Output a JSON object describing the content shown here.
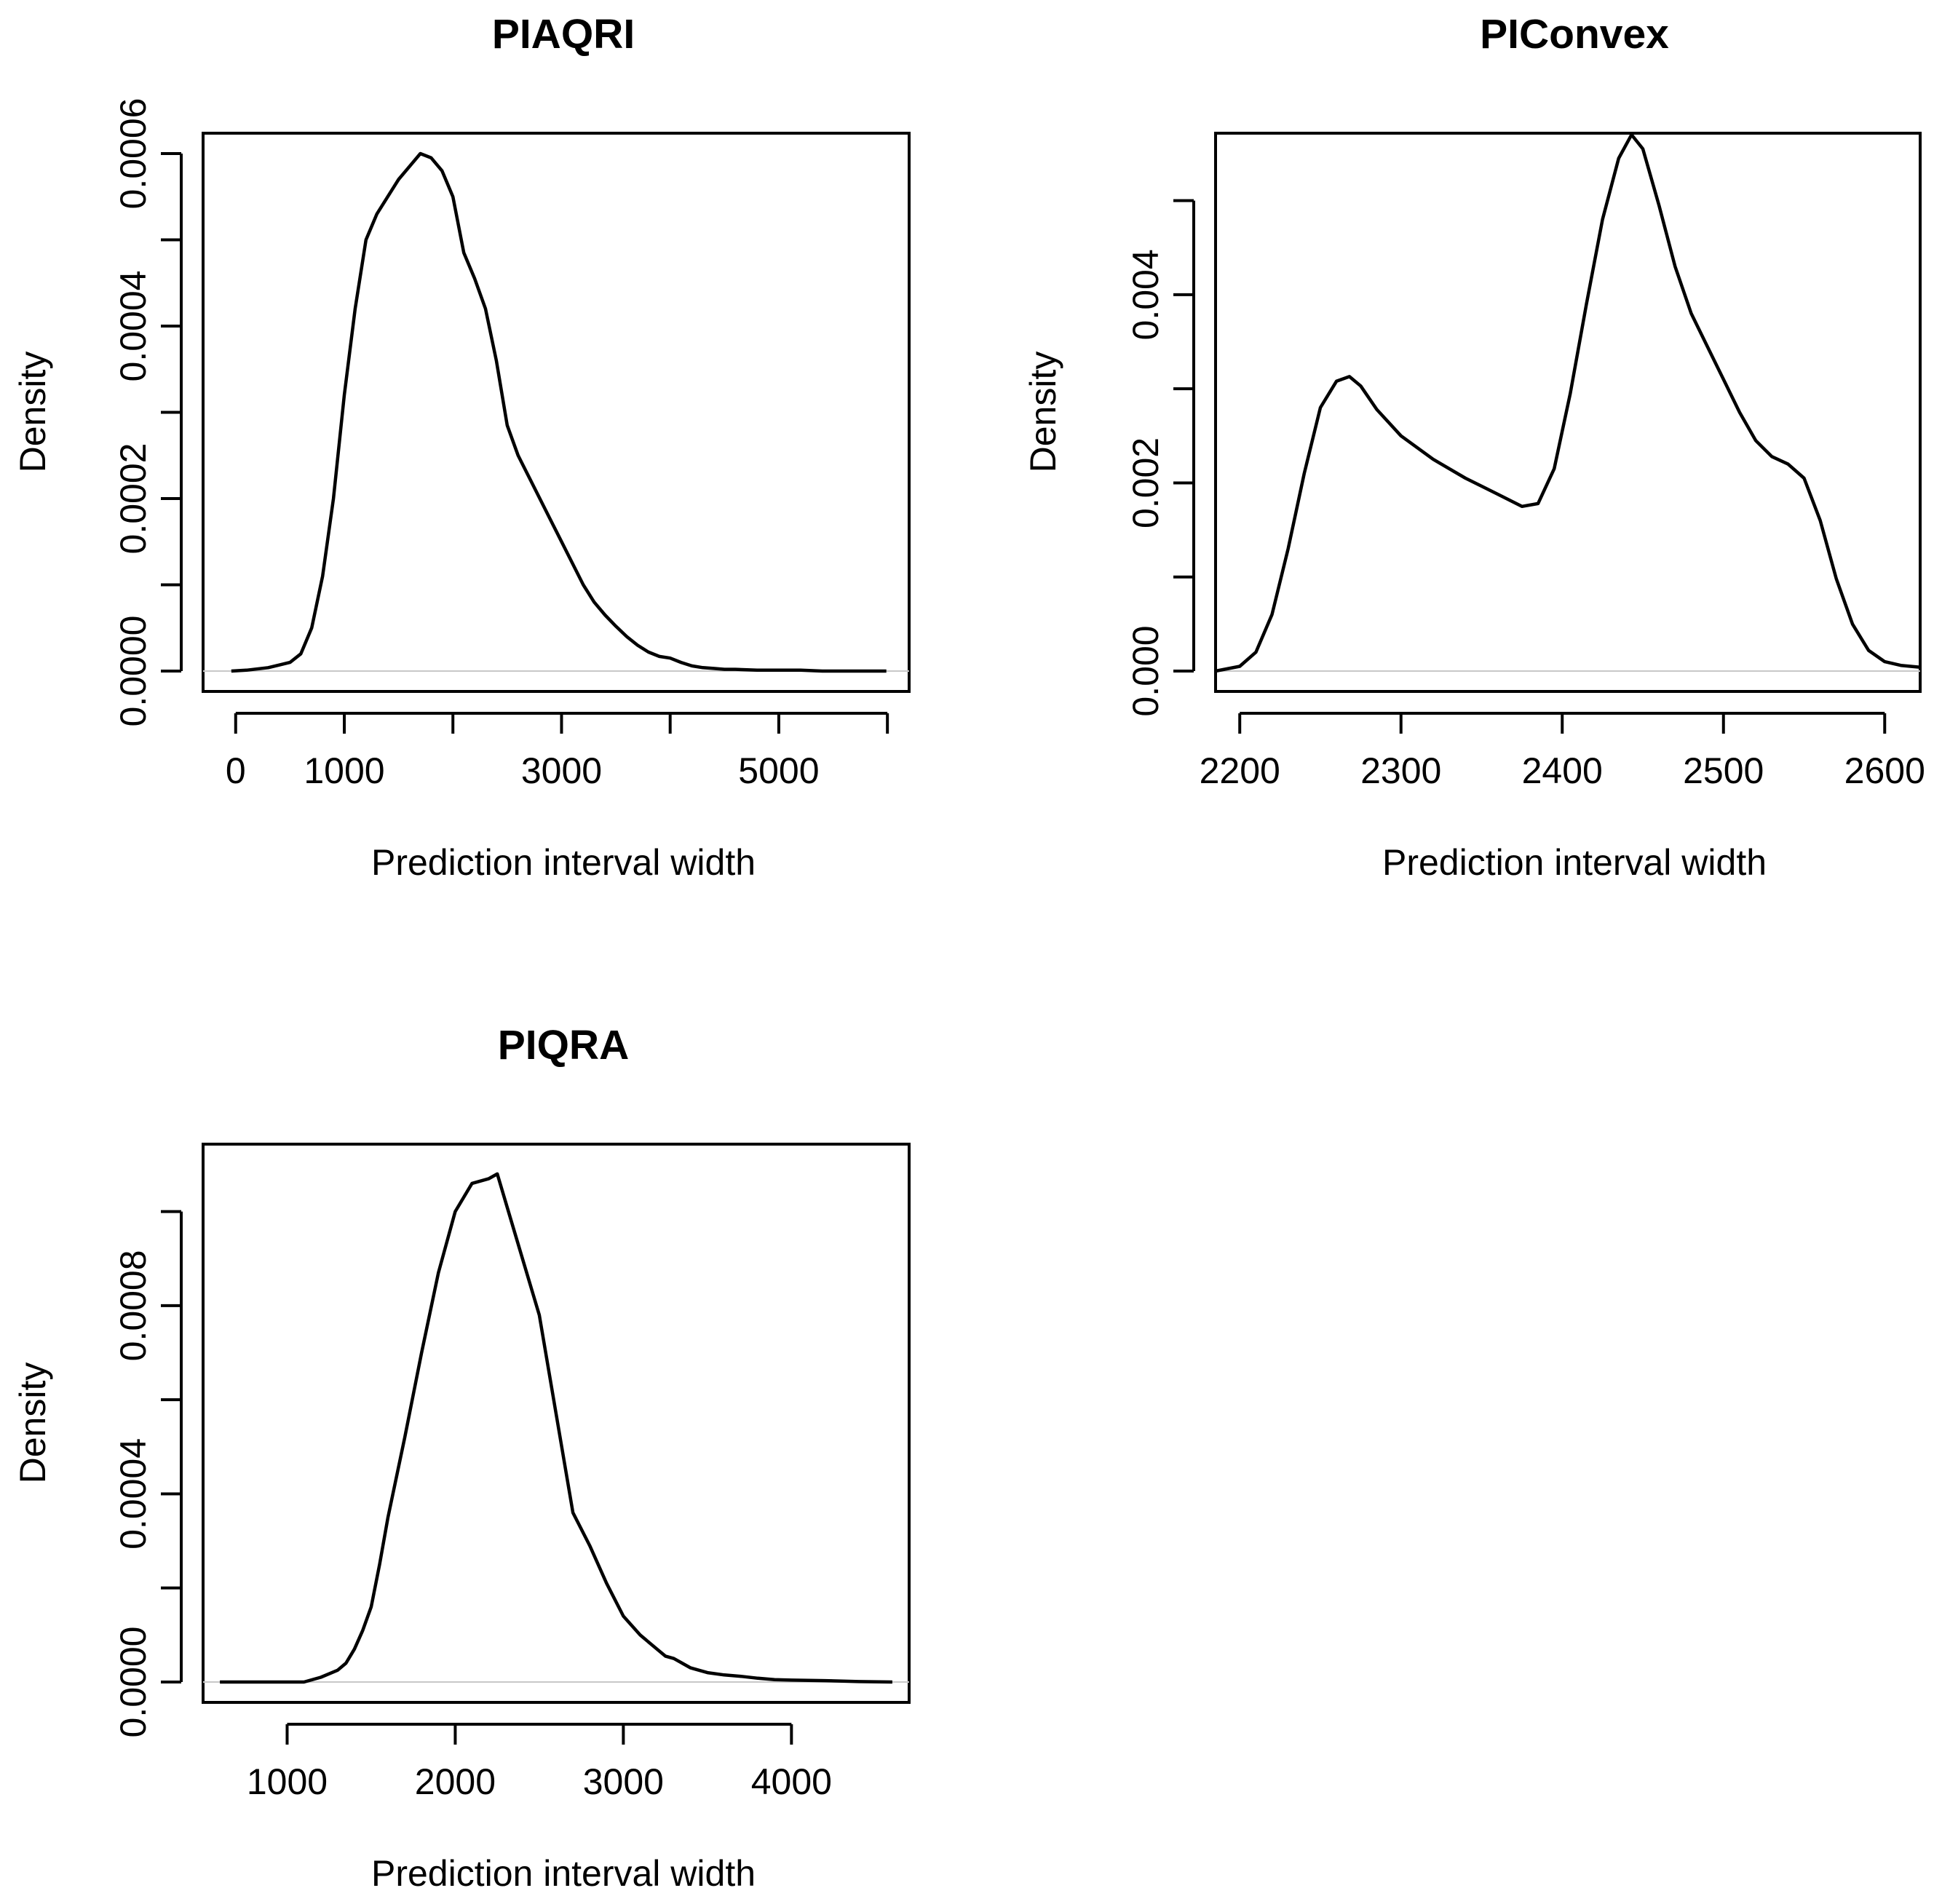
{
  "chart_data": [
    {
      "type": "line",
      "title": "PIAQRI",
      "xlabel": "Prediction interval width",
      "ylabel": "Density",
      "xlim": [
        -300,
        6200
      ],
      "ylim": [
        0,
        0.0006
      ],
      "xticks": [
        0,
        1000,
        2000,
        3000,
        4000,
        5000,
        6000
      ],
      "xtick_labels": [
        "0",
        "1000",
        "",
        "3000",
        "",
        "5000",
        ""
      ],
      "yticks": [
        0,
        0.0001,
        0.0002,
        0.0003,
        0.0004,
        0.0005,
        0.0006
      ],
      "ytick_labels": [
        "0.0000",
        "",
        "0.0002",
        "",
        "0.0004",
        "",
        "0.0006"
      ],
      "baseline": 0,
      "line_color": "#000000",
      "baseline_color": "#c8c8c8",
      "series": [
        {
          "name": "density",
          "x": [
            -40,
            100,
            300,
            500,
            600,
            700,
            800,
            900,
            1000,
            1100,
            1200,
            1300,
            1400,
            1500,
            1600,
            1700,
            1800,
            1900,
            2000,
            2100,
            2200,
            2300,
            2400,
            2500,
            2600,
            2700,
            2800,
            2900,
            3000,
            3100,
            3200,
            3300,
            3400,
            3500,
            3600,
            3700,
            3800,
            3900,
            4000,
            4100,
            4200,
            4300,
            4400,
            4500,
            4600,
            4800,
            5000,
            5200,
            5400,
            5600,
            5800,
            5990
          ],
          "y": [
            0,
            1e-06,
            4e-06,
            1e-05,
            2e-05,
            5e-05,
            0.00011,
            0.0002,
            0.00032,
            0.00042,
            0.0005,
            0.00053,
            0.00055,
            0.00057,
            0.000585,
            0.0006,
            0.000595,
            0.00058,
            0.00055,
            0.000485,
            0.000455,
            0.00042,
            0.00036,
            0.000285,
            0.00025,
            0.000225,
            0.0002,
            0.000175,
            0.00015,
            0.000125,
            0.0001,
            8e-05,
            6.5e-05,
            5.2e-05,
            4e-05,
            3e-05,
            2.2e-05,
            1.7e-05,
            1.5e-05,
            1e-05,
            6e-06,
            4e-06,
            3e-06,
            2e-06,
            2e-06,
            1e-06,
            1e-06,
            1e-06,
            0,
            0,
            0,
            0
          ]
        }
      ]
    },
    {
      "type": "line",
      "title": "PIConvex",
      "xlabel": "Prediction interval width",
      "ylabel": "Density",
      "xlim": [
        2185,
        2622
      ],
      "ylim": [
        0,
        0.0055
      ],
      "xticks": [
        2200,
        2300,
        2400,
        2500,
        2600
      ],
      "xtick_labels": [
        "2200",
        "2300",
        "2400",
        "2500",
        "2600"
      ],
      "yticks": [
        0,
        0.001,
        0.002,
        0.003,
        0.004,
        0.005
      ],
      "ytick_labels": [
        "0.000",
        "",
        "0.002",
        "",
        "0.004",
        ""
      ],
      "baseline": 0,
      "line_color": "#000000",
      "baseline_color": "#c8c8c8",
      "series": [
        {
          "name": "density",
          "x": [
            2185,
            2200,
            2210,
            2220,
            2230,
            2240,
            2250,
            2260,
            2268,
            2275,
            2285,
            2300,
            2320,
            2340,
            2360,
            2375,
            2385,
            2395,
            2405,
            2415,
            2425,
            2435,
            2443,
            2450,
            2460,
            2470,
            2480,
            2490,
            2500,
            2510,
            2520,
            2530,
            2540,
            2550,
            2560,
            2570,
            2580,
            2590,
            2600,
            2610,
            2622
          ],
          "y": [
            0,
            5e-05,
            0.0002,
            0.0006,
            0.0013,
            0.0021,
            0.0028,
            0.00308,
            0.00313,
            0.00303,
            0.00278,
            0.0025,
            0.00225,
            0.00205,
            0.00188,
            0.00175,
            0.00178,
            0.00215,
            0.00295,
            0.0039,
            0.0048,
            0.00545,
            0.0057,
            0.00555,
            0.00495,
            0.0043,
            0.0038,
            0.00345,
            0.0031,
            0.00275,
            0.00245,
            0.00228,
            0.0022,
            0.00205,
            0.0016,
            0.00098,
            0.0005,
            0.00022,
            0.0001,
            6e-05,
            4e-05
          ]
        }
      ]
    },
    {
      "type": "line",
      "title": "PIQRA",
      "xlabel": "Prediction interval width",
      "ylabel": "Density",
      "xlim": [
        500,
        4700
      ],
      "ylim": [
        0,
        0.0011
      ],
      "xticks": [
        1000,
        2000,
        3000,
        4000
      ],
      "xtick_labels": [
        "1000",
        "2000",
        "3000",
        "4000"
      ],
      "yticks": [
        0,
        0.0002,
        0.0004,
        0.0006,
        0.0008,
        0.001
      ],
      "ytick_labels": [
        "0.0000",
        "",
        "0.0004",
        "",
        "0.0008",
        ""
      ],
      "baseline": 0,
      "line_color": "#000000",
      "baseline_color": "#c8c8c8",
      "series": [
        {
          "name": "density",
          "x": [
            600,
            800,
            1000,
            1100,
            1200,
            1300,
            1350,
            1400,
            1450,
            1500,
            1550,
            1600,
            1700,
            1800,
            1900,
            2000,
            2100,
            2200,
            2250,
            2300,
            2400,
            2500,
            2600,
            2700,
            2800,
            2900,
            3000,
            3100,
            3200,
            3250,
            3300,
            3350,
            3400,
            3450,
            3500,
            3600,
            3700,
            3800,
            3900,
            4000,
            4200,
            4400,
            4600
          ],
          "y": [
            0,
            0,
            0,
            0,
            1e-05,
            2.5e-05,
            4e-05,
            7e-05,
            0.00011,
            0.00016,
            0.00025,
            0.00035,
            0.00052,
            0.0007,
            0.00087,
            0.001,
            0.00106,
            0.00107,
            0.00108,
            0.00102,
            0.0009,
            0.00078,
            0.00057,
            0.00036,
            0.00029,
            0.00021,
            0.00014,
            0.0001,
            7e-05,
            5.5e-05,
            5e-05,
            4e-05,
            3e-05,
            2.5e-05,
            2e-05,
            1.5e-05,
            1.2e-05,
            8e-06,
            5e-06,
            4e-06,
            3e-06,
            1e-06,
            0
          ]
        }
      ]
    }
  ]
}
